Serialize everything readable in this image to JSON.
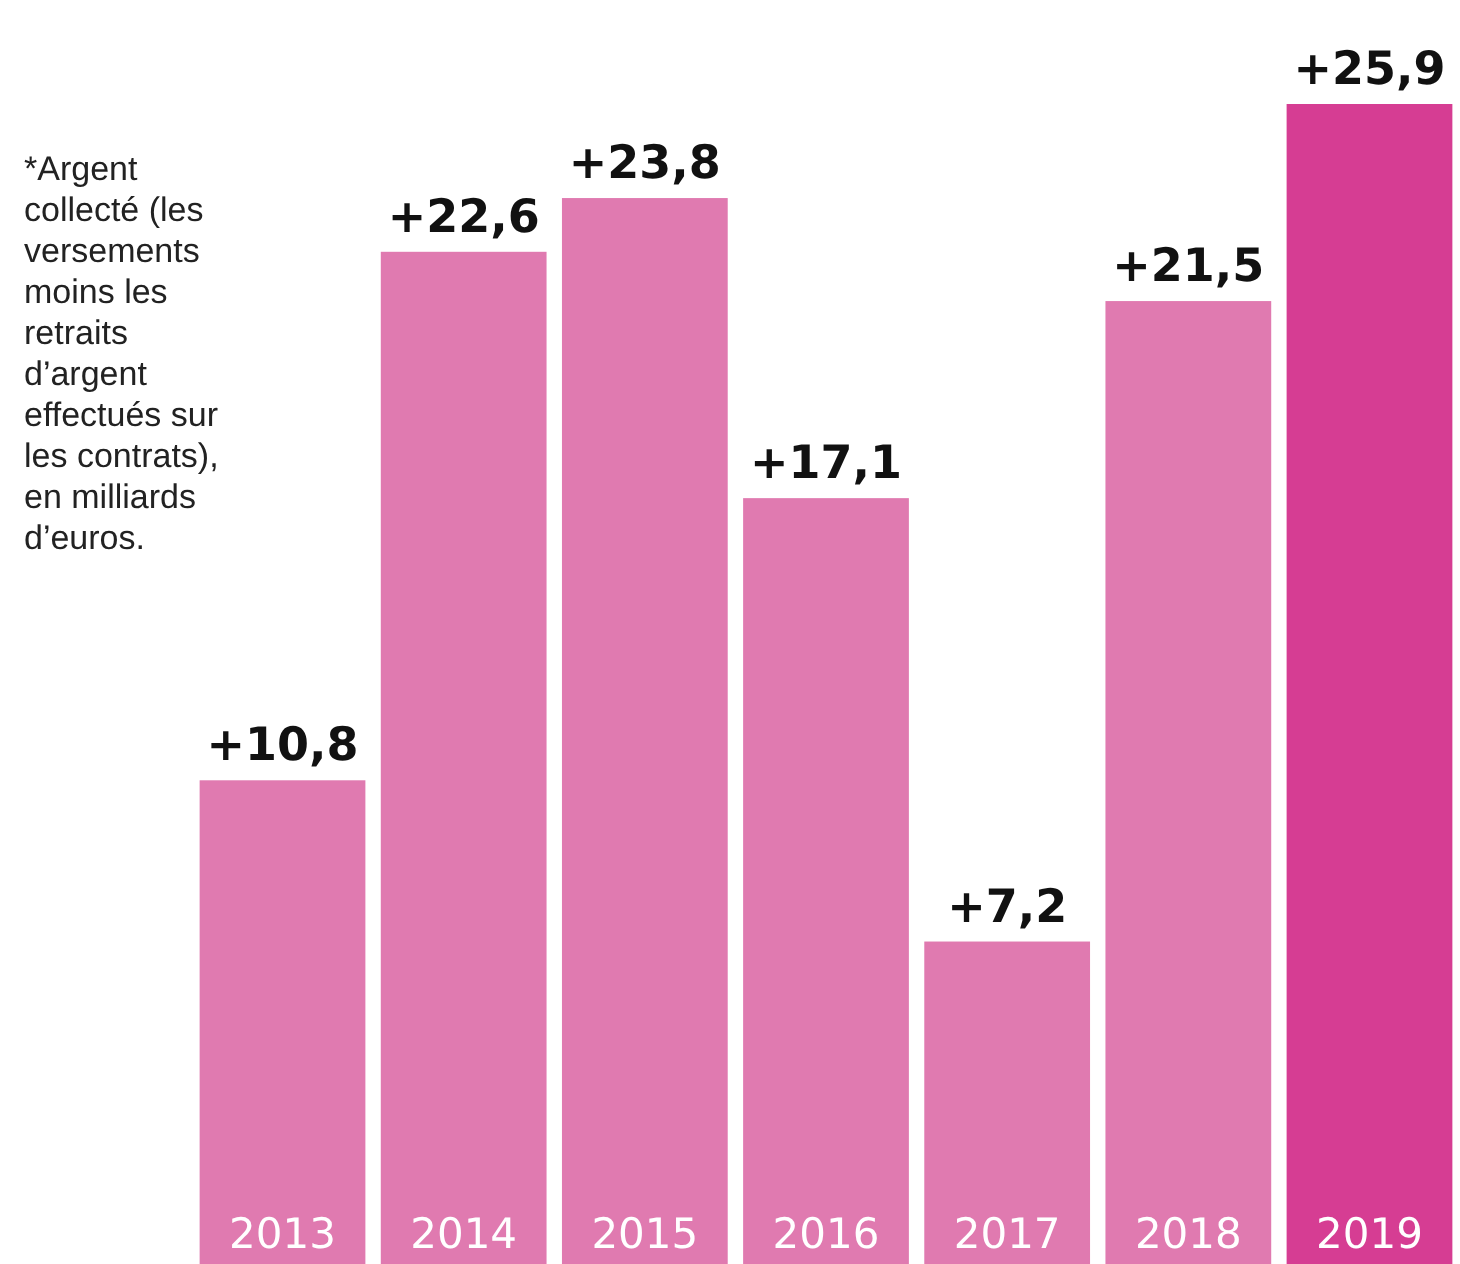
{
  "chart_data": {
    "type": "bar",
    "categories": [
      "2013",
      "2014",
      "2015",
      "2016",
      "2017",
      "2018",
      "2019"
    ],
    "values": [
      10.8,
      22.6,
      23.8,
      17.1,
      7.2,
      21.5,
      25.9
    ],
    "colors": [
      "#e07ab0",
      "#e07ab0",
      "#e07ab0",
      "#e07ab0",
      "#e07ab0",
      "#e07ab0",
      "#d63d93"
    ],
    "value_labels": [
      "+10,8",
      "+22,6",
      "+23,8",
      "+17,1",
      "+7,2",
      "+21,5",
      "+25,9"
    ],
    "annotations": [
      "*Argent\ncollecté (les\nversements\nmoins les\nretraits\nd’argent\neffectués sur\nles contrats),\nen milliards\nd’euros."
    ]
  }
}
